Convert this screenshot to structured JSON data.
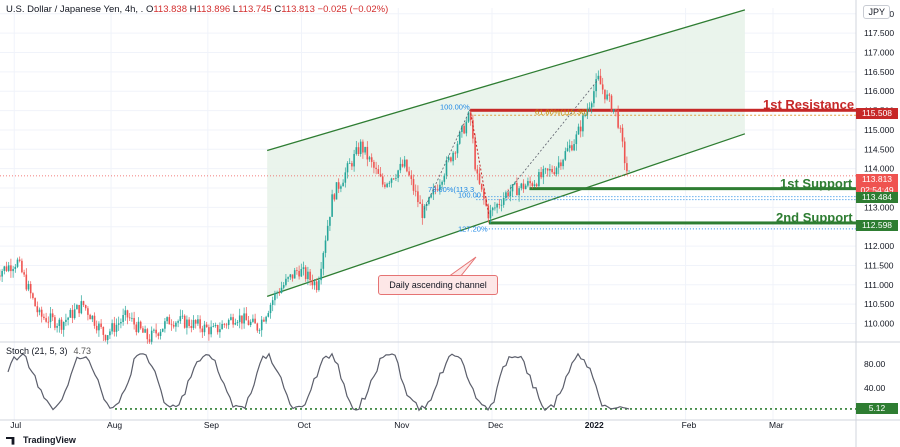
{
  "header": {
    "symbol": "U.S. Dollar / Japanese Yen, 4h, .",
    "open_label": "O",
    "open": "113.838",
    "high_label": "H",
    "high": "113.896",
    "low_label": "L",
    "low": "113.745",
    "close_label": "C",
    "close": "113.813",
    "change": "−0.025 (−0.02%)",
    "currency": "JPY"
  },
  "annotations": {
    "first_resistance": "1st Resistance",
    "first_support": "1st Support",
    "second_support": "2nd Support",
    "callout": "Daily ascending channel",
    "fib_100_top": "100.00%",
    "fib_618": "61.80%(115.36)",
    "fib_786": "78.60%(113.3",
    "fib_100_low": "100.00",
    "fib_1272": "127.20%"
  },
  "price_tags": {
    "resistance": "115.508",
    "current": "113.813",
    "countdown": "02:54:49",
    "support1": "113.484",
    "support2": "112.598",
    "stoch_current": "5.12"
  },
  "colors": {
    "resistance": "#c62828",
    "support": "#2e7d32",
    "channel": "#2e7d32",
    "channel_fill": "#e8f3ea",
    "candle_up": "#26a69a",
    "candle_down": "#ef5350",
    "current_price": "#ef5350",
    "stoch_line": "#5b5e6b",
    "stoch_dotted": "#2e7d32"
  },
  "stoch": {
    "label": "Stoch (21, 5, 3)",
    "value": "4.73"
  },
  "branding": "TradingView",
  "chart_data": {
    "type": "candlestick",
    "timeframe": "4h",
    "x_tick_labels": [
      "Jul",
      "Aug",
      "Sep",
      "Oct",
      "Nov",
      "Dec",
      "2022",
      "Feb",
      "Mar"
    ],
    "y_tick_labels": [
      "110.000",
      "110.500",
      "111.000",
      "111.500",
      "112.000",
      "112.500",
      "113.000",
      "113.500",
      "114.000",
      "114.500",
      "115.000",
      "115.500",
      "116.000",
      "116.500",
      "117.000",
      "117.500",
      "118.000"
    ],
    "ylim": [
      109.6,
      118.15
    ],
    "levels": {
      "first_resistance": 115.508,
      "first_support": 113.484,
      "second_support": 112.598,
      "current": 113.813
    },
    "channel": {
      "upper": {
        "start": [
          "2021-09-20",
          114.47
        ],
        "end": [
          "2022-02-20",
          118.1
        ]
      },
      "lower": {
        "start": [
          "2021-09-20",
          110.7
        ],
        "end": [
          "2022-02-20",
          114.9
        ]
      }
    },
    "price_path": [
      [
        "2021-06-25",
        111.3
      ],
      [
        "2021-07-02",
        111.6
      ],
      [
        "2021-07-09",
        110.2
      ],
      [
        "2021-07-16",
        110.0
      ],
      [
        "2021-07-23",
        110.5
      ],
      [
        "2021-07-30",
        109.7
      ],
      [
        "2021-08-06",
        110.2
      ],
      [
        "2021-08-13",
        109.6
      ],
      [
        "2021-08-20",
        110.1
      ],
      [
        "2021-08-27",
        110.0
      ],
      [
        "2021-09-03",
        109.8
      ],
      [
        "2021-09-10",
        110.2
      ],
      [
        "2021-09-17",
        109.9
      ],
      [
        "2021-09-23",
        110.8
      ],
      [
        "2021-09-30",
        111.4
      ],
      [
        "2021-10-06",
        111.0
      ],
      [
        "2021-10-11",
        113.3
      ],
      [
        "2021-10-20",
        114.6
      ],
      [
        "2021-10-27",
        113.6
      ],
      [
        "2021-11-03",
        114.1
      ],
      [
        "2021-11-09",
        112.8
      ],
      [
        "2021-11-16",
        114.0
      ],
      [
        "2021-11-24",
        115.4
      ],
      [
        "2021-11-26",
        113.8
      ],
      [
        "2021-11-30",
        112.8
      ],
      [
        "2021-12-06",
        113.4
      ],
      [
        "2021-12-13",
        113.6
      ],
      [
        "2021-12-21",
        114.0
      ],
      [
        "2021-12-28",
        114.8
      ],
      [
        "2022-01-04",
        116.3
      ],
      [
        "2022-01-07",
        115.8
      ],
      [
        "2022-01-10",
        115.4
      ],
      [
        "2022-01-13",
        114.0
      ],
      [
        "2022-01-14",
        113.81
      ]
    ],
    "stochastic": {
      "params": "21, 5, 3",
      "ylim": [
        0,
        100
      ],
      "y_tick_labels": [
        "40.00",
        "80.00"
      ],
      "oversold_line": 5.12,
      "value": 4.73
    }
  }
}
